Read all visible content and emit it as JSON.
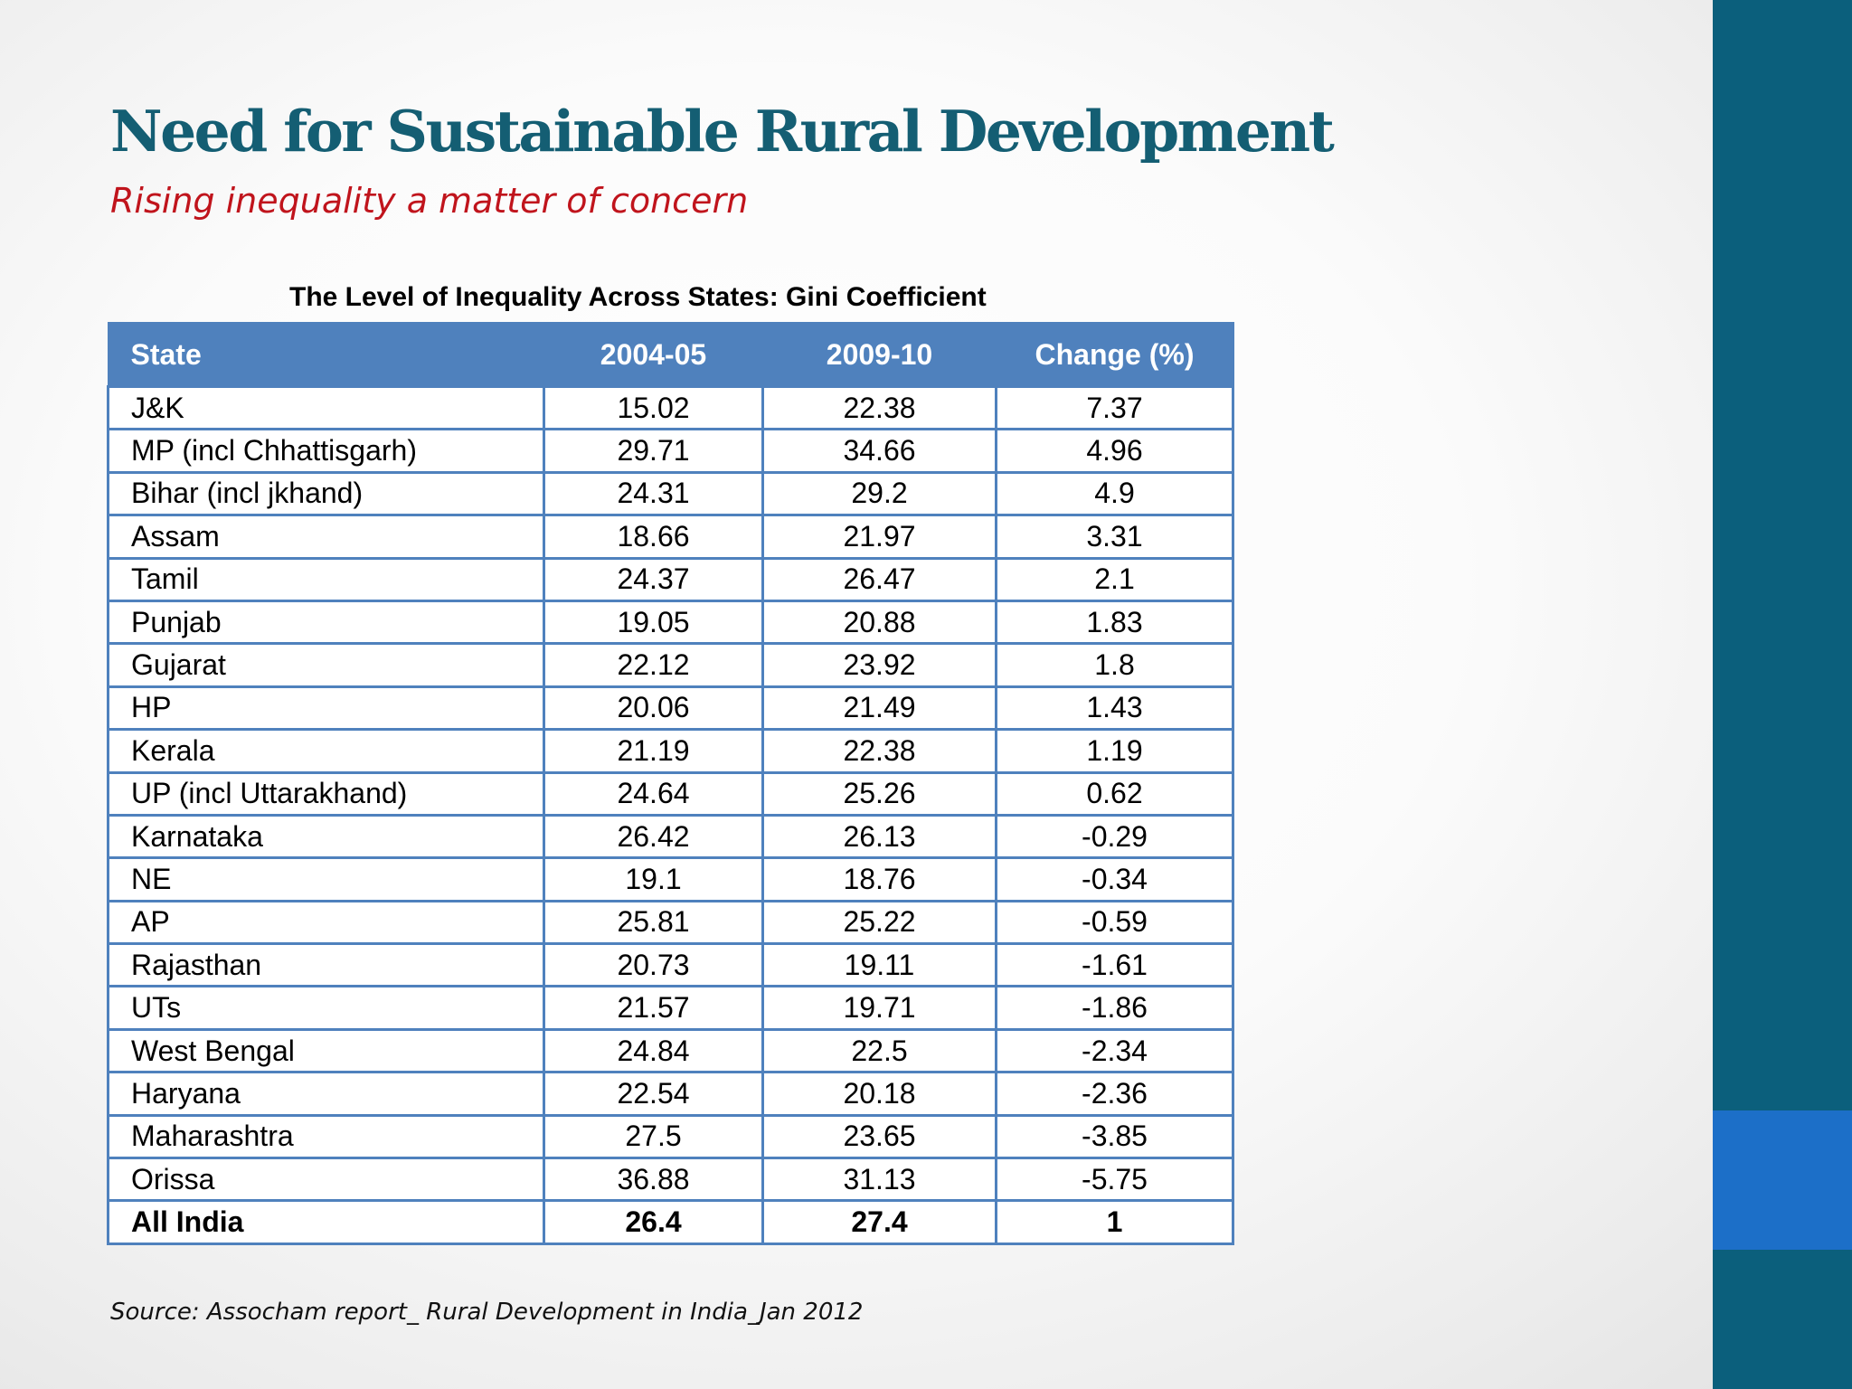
{
  "slide": {
    "title": "Need for Sustainable Rural Development",
    "subtitle": "Rising inequality a matter of concern",
    "table_caption": "The Level of Inequality Across States: Gini Coefficient",
    "source": "Source: Assocham report_ Rural Development in India_Jan 2012"
  },
  "colors": {
    "title": "#145e73",
    "subtitle": "#c0141c",
    "table_header": "#4f81bd",
    "side_bar": "#0b5f7c",
    "side_accent": "#1c6fc8"
  },
  "table": {
    "headers": [
      "State",
      "2004-05",
      "2009-10",
      "Change (%)"
    ],
    "rows": [
      [
        "J&K",
        "15.02",
        "22.38",
        "7.37"
      ],
      [
        "MP (incl Chhattisgarh)",
        "29.71",
        "34.66",
        "4.96"
      ],
      [
        "Bihar (incl jkhand)",
        "24.31",
        "29.2",
        "4.9"
      ],
      [
        "Assam",
        "18.66",
        "21.97",
        "3.31"
      ],
      [
        "Tamil",
        "24.37",
        "26.47",
        "2.1"
      ],
      [
        "Punjab",
        "19.05",
        "20.88",
        "1.83"
      ],
      [
        "Gujarat",
        "22.12",
        "23.92",
        "1.8"
      ],
      [
        "HP",
        "20.06",
        "21.49",
        "1.43"
      ],
      [
        "Kerala",
        "21.19",
        "22.38",
        "1.19"
      ],
      [
        "UP (incl Uttarakhand)",
        "24.64",
        "25.26",
        "0.62"
      ],
      [
        "Karnataka",
        "26.42",
        "26.13",
        "-0.29"
      ],
      [
        "NE",
        "19.1",
        "18.76",
        "-0.34"
      ],
      [
        "AP",
        "25.81",
        "25.22",
        "-0.59"
      ],
      [
        "Rajasthan",
        "20.73",
        "19.11",
        "-1.61"
      ],
      [
        "UTs",
        "21.57",
        "19.71",
        "-1.86"
      ],
      [
        "West Bengal",
        "24.84",
        "22.5",
        "-2.34"
      ],
      [
        "Haryana",
        "22.54",
        "20.18",
        "-2.36"
      ],
      [
        "Maharashtra",
        "27.5",
        "23.65",
        "-3.85"
      ],
      [
        "Orissa",
        "36.88",
        "31.13",
        "-5.75"
      ],
      [
        "All India",
        "26.4",
        "27.4",
        "1"
      ]
    ]
  }
}
